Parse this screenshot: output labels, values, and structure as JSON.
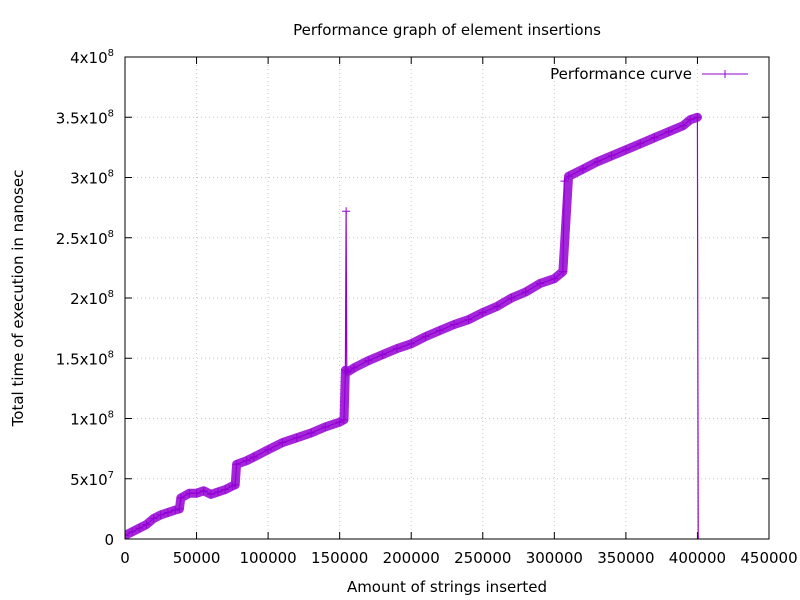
{
  "chart_data": {
    "type": "line",
    "title": "Performance graph of element insertions",
    "xlabel": "Amount of strings inserted",
    "ylabel": "Total time of execution in nanosec",
    "xlim": [
      0,
      450000
    ],
    "ylim": [
      0,
      400000000
    ],
    "x_ticks": [
      {
        "value": 0,
        "label": "0"
      },
      {
        "value": 50000,
        "label": "50000"
      },
      {
        "value": 100000,
        "label": "100000"
      },
      {
        "value": 150000,
        "label": "150000"
      },
      {
        "value": 200000,
        "label": "200000"
      },
      {
        "value": 250000,
        "label": "250000"
      },
      {
        "value": 300000,
        "label": "300000"
      },
      {
        "value": 350000,
        "label": "350000"
      },
      {
        "value": 400000,
        "label": "400000"
      },
      {
        "value": 450000,
        "label": "450000"
      }
    ],
    "y_ticks": [
      {
        "value": 0,
        "mantissa": "0",
        "exp": ""
      },
      {
        "value": 50000000,
        "mantissa": "5x10",
        "exp": "7"
      },
      {
        "value": 100000000,
        "mantissa": "1x10",
        "exp": "8"
      },
      {
        "value": 150000000,
        "mantissa": "1.5x10",
        "exp": "8"
      },
      {
        "value": 200000000,
        "mantissa": "2x10",
        "exp": "8"
      },
      {
        "value": 250000000,
        "mantissa": "2.5x10",
        "exp": "8"
      },
      {
        "value": 300000000,
        "mantissa": "3x10",
        "exp": "8"
      },
      {
        "value": 350000000,
        "mantissa": "3.5x10",
        "exp": "8"
      },
      {
        "value": 400000000,
        "mantissa": "4x10",
        "exp": "8"
      }
    ],
    "grid": true,
    "legend_position": "top-right",
    "marker": "plus",
    "series": [
      {
        "name": "Performance curve",
        "color": "#9400d3",
        "x": [
          0,
          5000,
          10000,
          15000,
          20000,
          25000,
          30000,
          35000,
          38000,
          39000,
          45000,
          50000,
          55000,
          60000,
          65000,
          70000,
          75000,
          77000,
          78000,
          85000,
          90000,
          100000,
          110000,
          120000,
          130000,
          140000,
          150000,
          153000,
          154000,
          154500,
          155000,
          156000,
          160000,
          170000,
          180000,
          190000,
          200000,
          210000,
          220000,
          230000,
          240000,
          250000,
          260000,
          270000,
          280000,
          290000,
          300000,
          306000,
          307000,
          310000,
          320000,
          330000,
          340000,
          350000,
          360000,
          370000,
          380000,
          390000,
          395000,
          400000,
          400500
        ],
        "y": [
          3000000,
          6000000,
          9000000,
          12000000,
          17000000,
          20000000,
          22000000,
          24000000,
          25000000,
          34000000,
          38000000,
          38000000,
          40000000,
          37000000,
          39000000,
          41000000,
          44000000,
          45000000,
          62000000,
          65000000,
          68000000,
          74000000,
          80000000,
          84000000,
          88000000,
          93000000,
          97000000,
          99000000,
          140000000,
          272000000,
          138000000,
          139000000,
          142000000,
          148000000,
          153000000,
          158000000,
          162000000,
          168000000,
          173000000,
          178000000,
          182000000,
          188000000,
          193000000,
          200000000,
          205000000,
          212000000,
          216000000,
          222000000,
          297000000,
          301000000,
          307000000,
          313000000,
          318000000,
          323000000,
          328000000,
          333000000,
          338000000,
          343000000,
          348000000,
          350000000,
          0
        ]
      }
    ]
  }
}
